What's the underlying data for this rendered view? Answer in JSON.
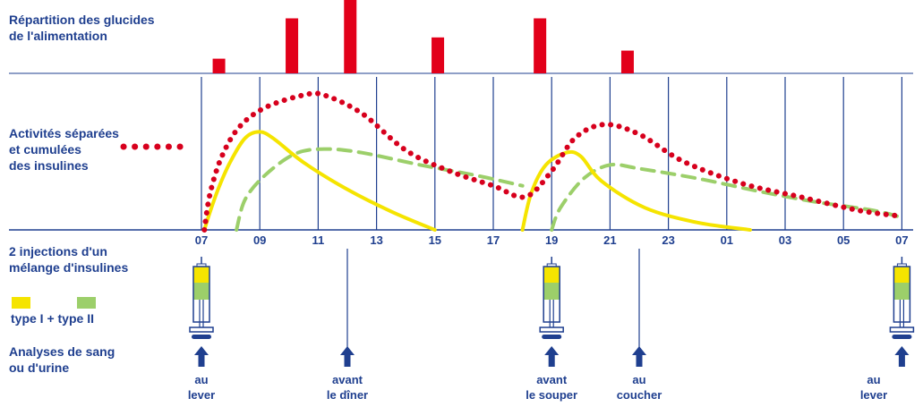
{
  "labels": {
    "carbs_title_1": "Répartition des glucides",
    "carbs_title_2": "de l'alimentation",
    "activity_1": "Activités séparées",
    "activity_2": "et cumulées",
    "activity_3": "des insulines",
    "injections_1": "2 injections d'un",
    "injections_2": "mélange d'insulines",
    "types": "type I + type II",
    "analyses_1": "Analyses de sang",
    "analyses_2": "ou d'urine"
  },
  "events": [
    {
      "hour": 7,
      "line1": "au",
      "line2": "lever",
      "syringe": true
    },
    {
      "hour": 12,
      "line1": "avant",
      "line2": "le dîner",
      "syringe": false
    },
    {
      "hour": 19,
      "line1": "avant",
      "line2": "le souper",
      "syringe": true
    },
    {
      "hour": 22,
      "line1": "au",
      "line2": "coucher",
      "syringe": false
    },
    {
      "hour": 31,
      "line1": "au",
      "line2": "lever",
      "syringe": true
    }
  ],
  "colors": {
    "text": "#1f3f8f",
    "axis": "#1f3f8f",
    "carb_bar": "#e2001a",
    "insulin_type1": "#f5e400",
    "insulin_type2": "#9ccf6a",
    "cumulative": "#d7001d"
  },
  "chart_data": {
    "type": "line",
    "x_tick_labels": [
      "07",
      "09",
      "11",
      "13",
      "15",
      "17",
      "19",
      "21",
      "23",
      "01",
      "03",
      "05",
      "07"
    ],
    "x_unit": "hour of day",
    "carbohydrate_bars": {
      "type": "bar",
      "x_hours": [
        7.6,
        10.1,
        12.1,
        15.1,
        18.6,
        21.6
      ],
      "relative_values": [
        0.2,
        0.75,
        1.0,
        0.49,
        0.75,
        0.31
      ]
    },
    "series": [
      {
        "id": "type1_morning",
        "style": "solid",
        "color": "#f5e400",
        "points": [
          [
            7.1,
            0
          ],
          [
            7.3,
            0.15
          ],
          [
            7.6,
            0.35
          ],
          [
            8.0,
            0.56
          ],
          [
            8.5,
            0.75
          ],
          [
            9.0,
            0.8
          ],
          [
            9.5,
            0.74
          ],
          [
            10.5,
            0.55
          ],
          [
            12,
            0.33
          ],
          [
            13.5,
            0.15
          ],
          [
            15,
            0
          ]
        ]
      },
      {
        "id": "type2_morning",
        "style": "dashed",
        "color": "#9ccf6a",
        "points": [
          [
            8.2,
            0
          ],
          [
            8.5,
            0.25
          ],
          [
            9.2,
            0.45
          ],
          [
            10.2,
            0.62
          ],
          [
            11.2,
            0.66
          ],
          [
            12.5,
            0.63
          ],
          [
            14.5,
            0.53
          ],
          [
            16.5,
            0.44
          ],
          [
            18,
            0.36
          ]
        ]
      },
      {
        "id": "cumulative",
        "style": "dotted",
        "color": "#d7001d",
        "points": [
          [
            7.1,
            0
          ],
          [
            7.3,
            0.3
          ],
          [
            7.7,
            0.6
          ],
          [
            8.3,
            0.84
          ],
          [
            9.2,
            1.0
          ],
          [
            10.5,
            1.1
          ],
          [
            11.2,
            1.1
          ],
          [
            12.5,
            0.95
          ],
          [
            14,
            0.65
          ],
          [
            15.5,
            0.48
          ],
          [
            17,
            0.36
          ],
          [
            18.1,
            0.27
          ],
          [
            19,
            0.48
          ],
          [
            19.8,
            0.75
          ],
          [
            20.8,
            0.86
          ],
          [
            22,
            0.78
          ],
          [
            23.5,
            0.56
          ],
          [
            25.5,
            0.38
          ],
          [
            27.5,
            0.27
          ],
          [
            29.5,
            0.16
          ],
          [
            31,
            0.11
          ]
        ]
      },
      {
        "id": "type1_evening",
        "style": "solid",
        "color": "#f5e400",
        "points": [
          [
            18.0,
            0
          ],
          [
            18.3,
            0.3
          ],
          [
            18.8,
            0.53
          ],
          [
            19.5,
            0.63
          ],
          [
            20.0,
            0.6
          ],
          [
            20.7,
            0.4
          ],
          [
            22.2,
            0.18
          ],
          [
            24,
            0.06
          ],
          [
            25.8,
            0
          ]
        ]
      },
      {
        "id": "type2_evening",
        "style": "dashed",
        "color": "#9ccf6a",
        "points": [
          [
            19.0,
            0
          ],
          [
            19.3,
            0.18
          ],
          [
            20.1,
            0.42
          ],
          [
            21.0,
            0.53
          ],
          [
            22.0,
            0.5
          ],
          [
            24,
            0.42
          ],
          [
            26,
            0.32
          ],
          [
            28,
            0.23
          ],
          [
            30,
            0.16
          ],
          [
            31,
            0.1
          ]
        ]
      }
    ]
  }
}
